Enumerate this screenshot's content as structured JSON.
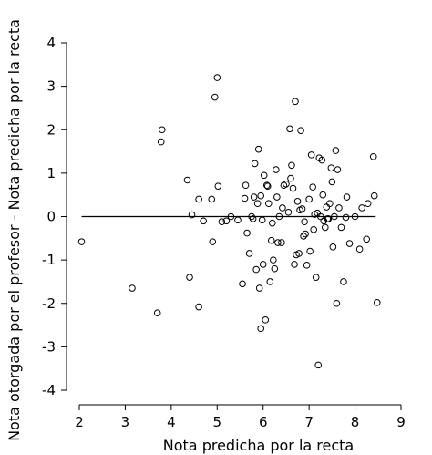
{
  "chart_data": {
    "type": "scatter",
    "title": "",
    "xlabel": "Nota predicha por la recta",
    "ylabel": "Nota otorgada por el profesor - Nota predicha por la recta",
    "xlim": [
      2,
      9
    ],
    "ylim": [
      -4,
      4
    ],
    "xticks": [
      "2",
      "3",
      "4",
      "5",
      "6",
      "7",
      "8",
      "9"
    ],
    "yticks": [
      "-4",
      "-3",
      "-2",
      "-1",
      "0",
      "1",
      "2",
      "3",
      "4"
    ],
    "grid": false,
    "reference_line_y": 0,
    "points": [
      [
        2.05,
        -0.58
      ],
      [
        3.15,
        -1.65
      ],
      [
        3.7,
        -2.22
      ],
      [
        3.78,
        1.72
      ],
      [
        3.8,
        2.0
      ],
      [
        4.35,
        0.84
      ],
      [
        4.4,
        -1.4
      ],
      [
        4.45,
        0.04
      ],
      [
        4.6,
        -2.08
      ],
      [
        4.6,
        0.4
      ],
      [
        4.7,
        -0.1
      ],
      [
        4.88,
        0.4
      ],
      [
        4.9,
        -0.58
      ],
      [
        4.95,
        2.75
      ],
      [
        5.0,
        3.2
      ],
      [
        5.02,
        0.7
      ],
      [
        5.1,
        -0.12
      ],
      [
        5.2,
        -0.1
      ],
      [
        5.3,
        0.0
      ],
      [
        5.45,
        -0.08
      ],
      [
        5.55,
        -1.55
      ],
      [
        5.6,
        0.42
      ],
      [
        5.62,
        0.72
      ],
      [
        5.65,
        -0.38
      ],
      [
        5.7,
        -0.85
      ],
      [
        5.75,
        0.0
      ],
      [
        5.78,
        -0.05
      ],
      [
        5.8,
        0.45
      ],
      [
        5.82,
        1.22
      ],
      [
        5.85,
        -1.22
      ],
      [
        5.88,
        0.3
      ],
      [
        5.9,
        1.55
      ],
      [
        5.92,
        -1.65
      ],
      [
        5.95,
        -2.58
      ],
      [
        5.95,
        0.48
      ],
      [
        5.98,
        -0.08
      ],
      [
        6.0,
        -1.1
      ],
      [
        6.02,
        0.95
      ],
      [
        6.05,
        -2.38
      ],
      [
        6.08,
        0.72
      ],
      [
        6.1,
        0.7
      ],
      [
        6.12,
        0.3
      ],
      [
        6.15,
        -1.5
      ],
      [
        6.18,
        -0.55
      ],
      [
        6.2,
        -0.15
      ],
      [
        6.22,
        -1.0
      ],
      [
        6.25,
        -1.2
      ],
      [
        6.28,
        1.08
      ],
      [
        6.3,
        0.45
      ],
      [
        6.32,
        -0.6
      ],
      [
        6.35,
        0.0
      ],
      [
        6.4,
        -0.6
      ],
      [
        6.42,
        0.2
      ],
      [
        6.45,
        0.72
      ],
      [
        6.5,
        0.75
      ],
      [
        6.55,
        0.1
      ],
      [
        6.58,
        2.02
      ],
      [
        6.6,
        0.88
      ],
      [
        6.62,
        1.18
      ],
      [
        6.65,
        0.65
      ],
      [
        6.68,
        -1.1
      ],
      [
        6.7,
        2.65
      ],
      [
        6.72,
        -0.88
      ],
      [
        6.75,
        0.35
      ],
      [
        6.78,
        -0.85
      ],
      [
        6.8,
        0.15
      ],
      [
        6.82,
        1.98
      ],
      [
        6.85,
        0.18
      ],
      [
        6.88,
        -0.45
      ],
      [
        6.9,
        -0.12
      ],
      [
        6.92,
        -0.4
      ],
      [
        6.95,
        -1.12
      ],
      [
        7.0,
        0.4
      ],
      [
        7.02,
        -0.8
      ],
      [
        7.05,
        1.42
      ],
      [
        7.08,
        0.68
      ],
      [
        7.1,
        -0.3
      ],
      [
        7.12,
        0.05
      ],
      [
        7.15,
        -1.4
      ],
      [
        7.18,
        0.08
      ],
      [
        7.2,
        -3.42
      ],
      [
        7.22,
        1.35
      ],
      [
        7.25,
        0.0
      ],
      [
        7.28,
        1.3
      ],
      [
        7.3,
        0.5
      ],
      [
        7.32,
        -0.1
      ],
      [
        7.35,
        -0.25
      ],
      [
        7.38,
        0.22
      ],
      [
        7.4,
        -0.05
      ],
      [
        7.42,
        -0.05
      ],
      [
        7.45,
        0.3
      ],
      [
        7.48,
        1.12
      ],
      [
        7.5,
        0.8
      ],
      [
        7.52,
        -0.7
      ],
      [
        7.55,
        0.0
      ],
      [
        7.58,
        1.52
      ],
      [
        7.6,
        -2.0
      ],
      [
        7.62,
        1.08
      ],
      [
        7.65,
        0.2
      ],
      [
        7.7,
        -0.25
      ],
      [
        7.75,
        -1.5
      ],
      [
        7.8,
        -0.02
      ],
      [
        7.82,
        0.45
      ],
      [
        7.88,
        -0.62
      ],
      [
        8.0,
        0.0
      ],
      [
        8.1,
        -0.75
      ],
      [
        8.15,
        0.2
      ],
      [
        8.25,
        -0.52
      ],
      [
        8.28,
        0.3
      ],
      [
        8.4,
        1.38
      ],
      [
        8.42,
        0.48
      ],
      [
        8.48,
        -1.98
      ]
    ]
  }
}
